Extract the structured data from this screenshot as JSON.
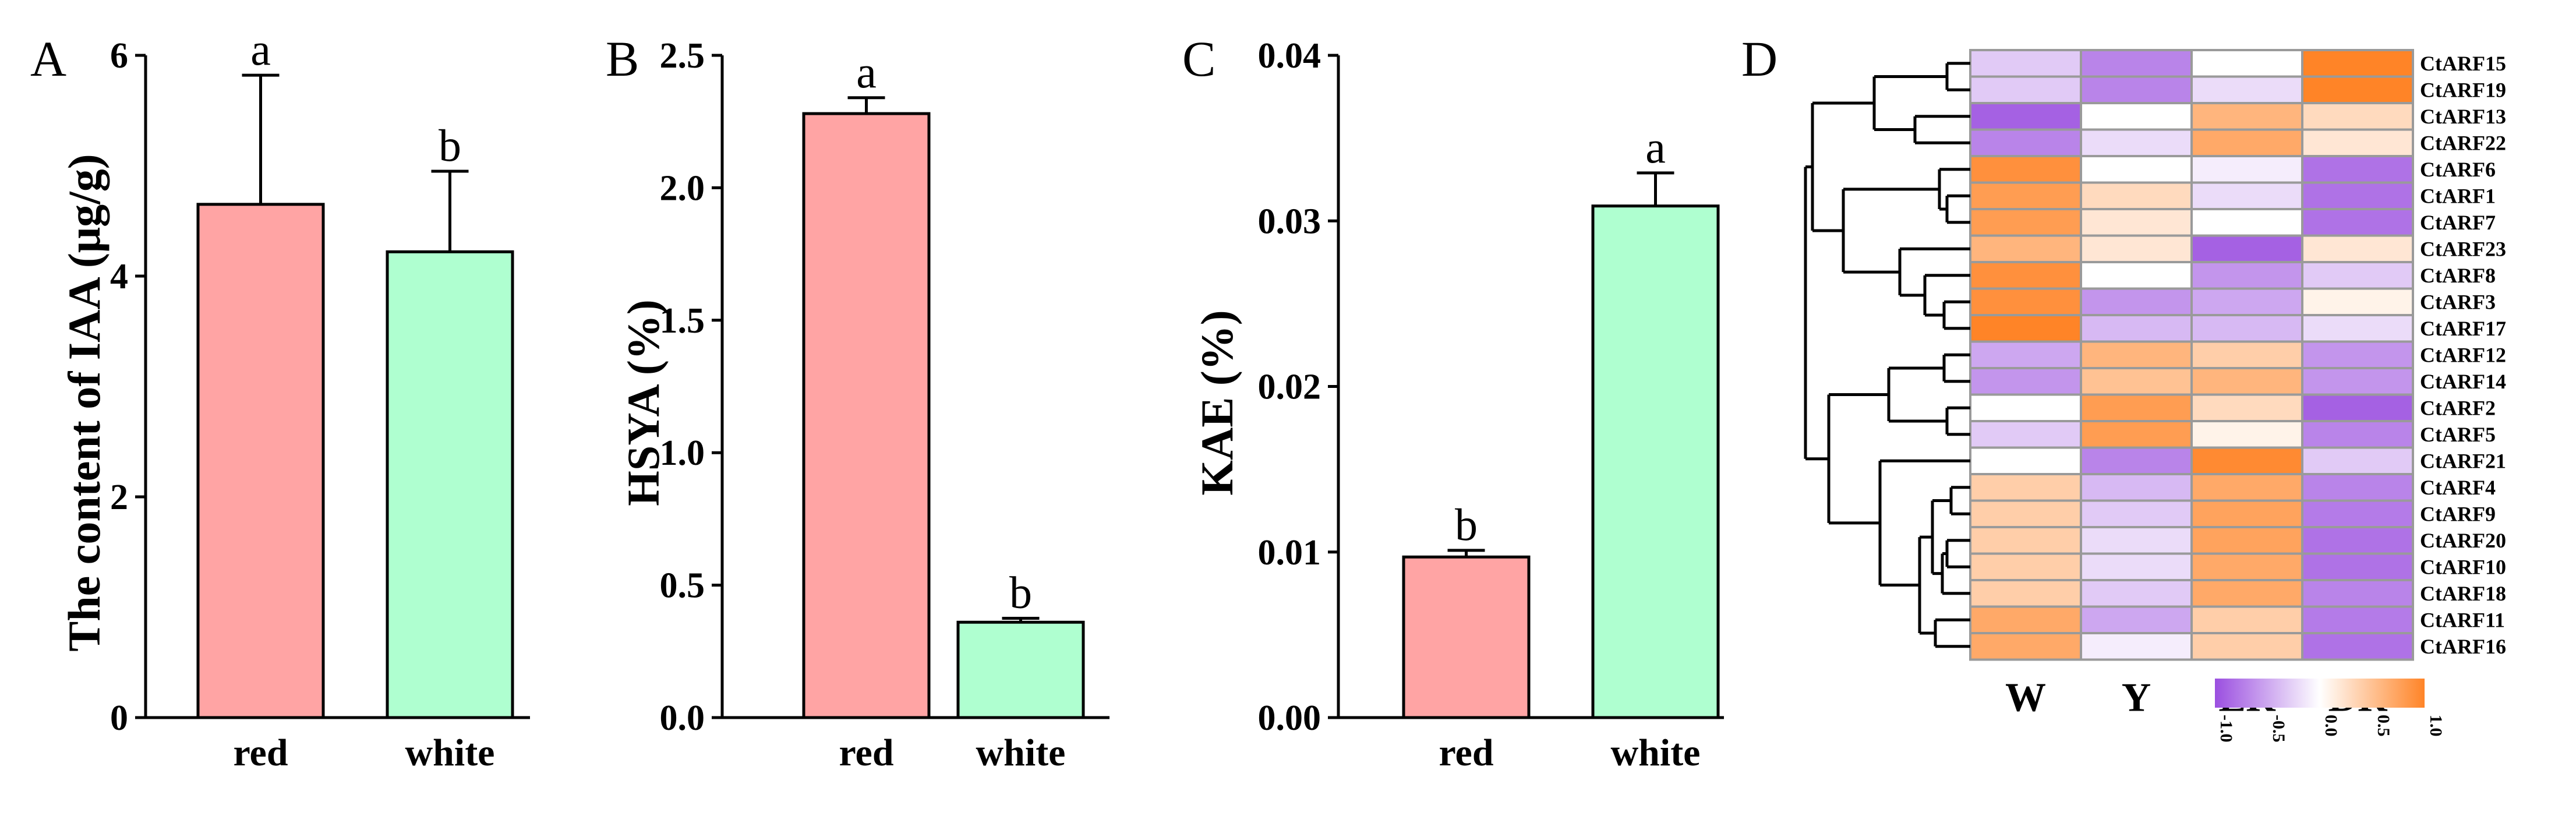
{
  "colors": {
    "red_bar": "#FFA4A4",
    "white_bar": "#AFFFD0",
    "heat_low": "#9B4FE0",
    "heat_mid": "#FFFFFF",
    "heat_high": "#FF8427",
    "cell_border": "#9A9A9A"
  },
  "chart_data": [
    {
      "panel": "A",
      "type": "bar",
      "ylabel": "The content of IAA (μg/g)",
      "ylim": [
        0,
        6
      ],
      "yticks": [
        "0",
        "2",
        "4",
        "6"
      ],
      "categories": [
        "red",
        "white"
      ],
      "values": [
        4.65,
        4.22
      ],
      "errors": [
        1.17,
        0.73
      ],
      "significance": [
        "a",
        "b"
      ]
    },
    {
      "panel": "B",
      "type": "bar",
      "ylabel": "HSYA (%)",
      "ylim": [
        0,
        2.5
      ],
      "yticks": [
        "0.0",
        "0.5",
        "1.0",
        "1.5",
        "2.0",
        "2.5"
      ],
      "categories": [
        "red",
        "white"
      ],
      "values": [
        2.28,
        0.36
      ],
      "errors": [
        0.06,
        0.015
      ],
      "significance": [
        "a",
        "b"
      ]
    },
    {
      "panel": "C",
      "type": "bar",
      "ylabel": "KAE (%)",
      "ylim": [
        0,
        0.04
      ],
      "yticks": [
        "0.00",
        "0.01",
        "0.02",
        "0.03",
        "0.04"
      ],
      "categories": [
        "red",
        "white"
      ],
      "values": [
        0.0097,
        0.0309
      ],
      "errors": [
        0.0004,
        0.002
      ],
      "significance": [
        "b",
        "a"
      ]
    },
    {
      "panel": "D",
      "type": "heatmap",
      "columns": [
        "W",
        "Y",
        "LR",
        "DR"
      ],
      "rows": [
        "CtARF15",
        "CtARF19",
        "CtARF13",
        "CtARF22",
        "CtARF6",
        "CtARF1",
        "CtARF7",
        "CtARF23",
        "CtARF8",
        "CtARF3",
        "CtARF17",
        "CtARF12",
        "CtARF14",
        "CtARF2",
        "CtARF5",
        "CtARF21",
        "CtARF4",
        "CtARF9",
        "CtARF20",
        "CtARF10",
        "CtARF18",
        "CtARF11",
        "CtARF16"
      ],
      "values": [
        [
          -0.3,
          -0.7,
          0.0,
          1.0
        ],
        [
          -0.3,
          -0.7,
          -0.2,
          1.0
        ],
        [
          -0.9,
          0.0,
          0.6,
          0.3
        ],
        [
          -0.7,
          -0.2,
          0.7,
          0.2
        ],
        [
          0.9,
          0.0,
          -0.1,
          -0.8
        ],
        [
          0.8,
          0.3,
          -0.2,
          -0.8
        ],
        [
          0.8,
          0.2,
          0.0,
          -0.8
        ],
        [
          0.6,
          0.2,
          -0.9,
          0.2
        ],
        [
          0.9,
          0.0,
          -0.6,
          -0.3
        ],
        [
          0.9,
          -0.6,
          -0.5,
          0.1
        ],
        [
          1.0,
          -0.4,
          -0.4,
          -0.2
        ],
        [
          -0.5,
          0.6,
          0.4,
          -0.6
        ],
        [
          -0.6,
          0.5,
          0.6,
          -0.6
        ],
        [
          0.0,
          0.8,
          0.3,
          -0.9
        ],
        [
          -0.3,
          0.8,
          0.1,
          -0.7
        ],
        [
          0.0,
          -0.7,
          0.95,
          -0.3
        ],
        [
          0.4,
          -0.4,
          0.7,
          -0.7
        ],
        [
          0.4,
          -0.3,
          0.75,
          -0.75
        ],
        [
          0.4,
          -0.2,
          0.75,
          -0.8
        ],
        [
          0.4,
          -0.2,
          0.7,
          -0.8
        ],
        [
          0.4,
          -0.3,
          0.7,
          -0.7
        ],
        [
          0.7,
          -0.5,
          0.4,
          -0.75
        ],
        [
          0.7,
          -0.1,
          0.4,
          -0.8
        ]
      ],
      "colorbar": {
        "min": -1.0,
        "max": 1.0,
        "ticks": [
          "-1.0",
          "-0.5",
          "0.0",
          "0.5",
          "1.0"
        ]
      }
    }
  ]
}
